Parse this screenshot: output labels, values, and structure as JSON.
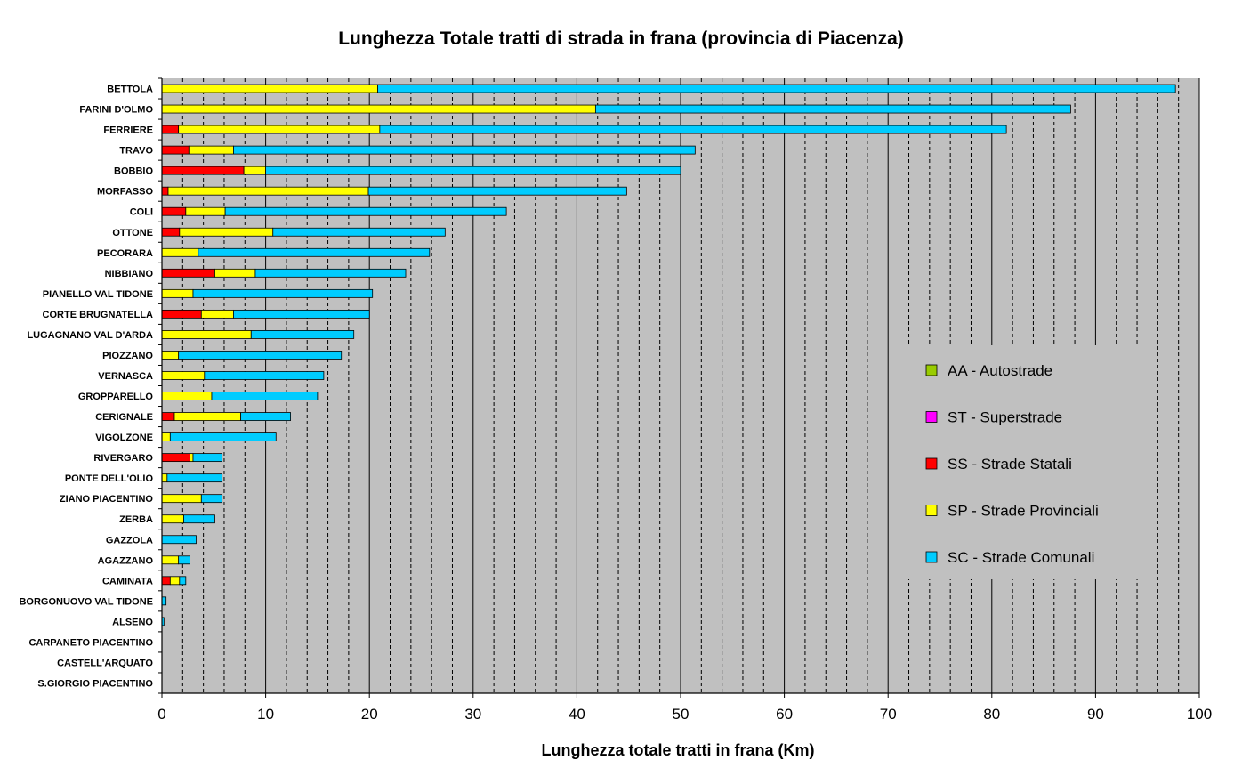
{
  "chart_data": {
    "type": "bar",
    "orientation": "horizontal",
    "stacked": true,
    "title": "Lunghezza Totale tratti di strada in frana (provincia di Piacenza)",
    "xlabel": "Lunghezza totale tratti in frana (Km)",
    "ylabel": "",
    "xlim": [
      0,
      100
    ],
    "xticks": [
      0,
      10,
      20,
      30,
      40,
      50,
      60,
      70,
      80,
      90,
      100
    ],
    "grid": "vertical major solid, minor dashed",
    "legend_position": "right",
    "categories": [
      "BETTOLA",
      "FARINI D'OLMO",
      "FERRIERE",
      "TRAVO",
      "BOBBIO",
      "MORFASSO",
      "COLI",
      "OTTONE",
      "PECORARA",
      "NIBBIANO",
      "PIANELLO VAL TIDONE",
      "CORTE BRUGNATELLA",
      "LUGAGNANO VAL D'ARDA",
      "PIOZZANO",
      "VERNASCA",
      "GROPPARELLO",
      "CERIGNALE",
      "VIGOLZONE",
      "RIVERGARO",
      "PONTE DELL'OLIO",
      "ZIANO PIACENTINO",
      "ZERBA",
      "GAZZOLA",
      "AGAZZANO",
      "CAMINATA",
      "BORGONUOVO VAL TIDONE",
      "ALSENO",
      "CARPANETO PIACENTINO",
      "CASTELL'ARQUATO",
      "S.GIORGIO PIACENTINO"
    ],
    "series": [
      {
        "name": "AA - Autostrade",
        "color": "#99cc00",
        "values": [
          0,
          0,
          0,
          0,
          0,
          0,
          0,
          0,
          0,
          0,
          0,
          0,
          0,
          0,
          0,
          0,
          0,
          0,
          0,
          0,
          0,
          0,
          0,
          0,
          0,
          0,
          0,
          0,
          0,
          0
        ]
      },
      {
        "name": "ST - Superstrade",
        "color": "#ff00ff",
        "values": [
          0,
          0,
          0,
          0,
          0,
          0,
          0,
          0,
          0,
          0,
          0,
          0,
          0,
          0,
          0,
          0,
          0,
          0,
          0,
          0,
          0,
          0,
          0,
          0,
          0,
          0,
          0,
          0,
          0,
          0
        ]
      },
      {
        "name": "SS - Strade Statali",
        "color": "#ff0000",
        "values": [
          0,
          0,
          1.6,
          2.6,
          7.9,
          0.6,
          2.3,
          1.7,
          0,
          5.1,
          0,
          3.8,
          0,
          0,
          0,
          0,
          1.2,
          0,
          2.7,
          0,
          0,
          0,
          0,
          0,
          0.8,
          0,
          0,
          0,
          0,
          0
        ]
      },
      {
        "name": "SP - Strade Provinciali",
        "color": "#ffff00",
        "values": [
          20.8,
          41.8,
          19.4,
          4.3,
          2.1,
          19.3,
          3.8,
          9.0,
          3.5,
          3.9,
          3.0,
          3.1,
          8.6,
          1.6,
          4.1,
          4.8,
          6.4,
          0.8,
          0.3,
          0.5,
          3.8,
          2.1,
          0,
          1.6,
          0.9,
          0,
          0,
          0,
          0,
          0
        ]
      },
      {
        "name": "SC - Strade Comunali",
        "color": "#00ccff",
        "values": [
          76.9,
          45.8,
          60.4,
          44.5,
          40.0,
          24.9,
          27.1,
          16.6,
          22.3,
          14.5,
          17.3,
          13.1,
          9.9,
          15.7,
          11.5,
          10.2,
          4.8,
          10.2,
          2.8,
          5.3,
          2.0,
          3.0,
          3.3,
          1.1,
          0.6,
          0.4,
          0.2,
          0,
          0,
          0
        ]
      }
    ]
  }
}
